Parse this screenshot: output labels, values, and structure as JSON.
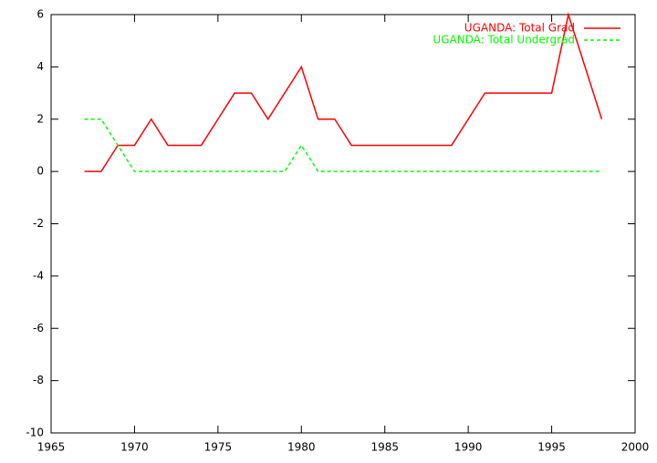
{
  "chart_data": {
    "type": "line",
    "x": [
      1967,
      1968,
      1969,
      1970,
      1971,
      1972,
      1973,
      1974,
      1975,
      1976,
      1977,
      1978,
      1979,
      1980,
      1981,
      1982,
      1983,
      1984,
      1985,
      1986,
      1987,
      1988,
      1989,
      1990,
      1991,
      1992,
      1993,
      1994,
      1995,
      1996,
      1997,
      1998
    ],
    "series": [
      {
        "name": "UGANDA: Total Grad",
        "color": "#ff0000",
        "values": [
          0,
          0,
          1,
          1,
          2,
          1,
          1,
          1,
          2,
          3,
          3,
          2,
          3,
          4,
          2,
          2,
          1,
          1,
          1,
          1,
          1,
          1,
          1,
          2,
          3,
          3,
          3,
          3,
          3,
          6,
          4,
          2
        ]
      },
      {
        "name": "UGANDA: Total Undergrad",
        "color": "#00ff00",
        "dashed": true,
        "values": [
          2,
          2,
          1,
          0,
          0,
          0,
          0,
          0,
          0,
          0,
          0,
          0,
          0,
          1,
          0,
          0,
          0,
          0,
          0,
          0,
          0,
          0,
          0,
          0,
          0,
          0,
          0,
          0,
          0,
          0,
          0,
          0
        ]
      }
    ],
    "xlim": [
      1965,
      2000
    ],
    "xticks": [
      1965,
      1970,
      1975,
      1980,
      1985,
      1990,
      1995,
      2000
    ],
    "ylim": [
      -10,
      6
    ],
    "yticks": [
      -10,
      -8,
      -6,
      -4,
      -2,
      0,
      2,
      4,
      6
    ],
    "legend": "top-right"
  }
}
